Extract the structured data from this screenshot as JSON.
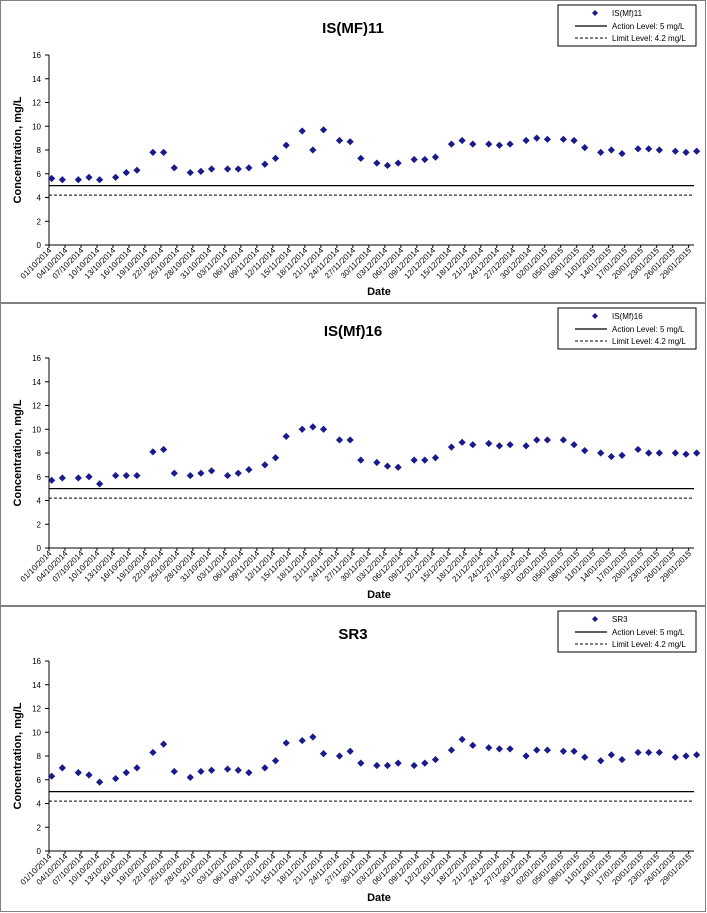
{
  "chart_data": [
    {
      "type": "scatter",
      "title": "IS(MF)11",
      "xlabel": "Date",
      "ylabel": "Concentration, mg/L",
      "ylim": [
        0,
        16
      ],
      "yticks": [
        "0",
        "2",
        "4",
        "6",
        "8",
        "10",
        "12",
        "14",
        "16"
      ],
      "xticks": [
        "01/10/2014",
        "04/10/2014",
        "07/10/2014",
        "10/10/2014",
        "13/10/2014",
        "16/10/2014",
        "19/10/2014",
        "22/10/2014",
        "25/10/2014",
        "28/10/2014",
        "31/10/2014",
        "03/11/2014",
        "06/11/2014",
        "09/11/2014",
        "12/11/2014",
        "15/11/2014",
        "18/11/2014",
        "21/11/2014",
        "24/11/2014",
        "27/11/2014",
        "30/11/2014",
        "03/12/2014",
        "06/12/2014",
        "09/12/2014",
        "12/12/2014",
        "15/12/2014",
        "18/12/2014",
        "21/12/2014",
        "24/12/2014",
        "27/12/2014",
        "30/12/2014",
        "02/01/2015",
        "05/01/2015",
        "08/01/2015",
        "11/01/2015",
        "14/01/2015",
        "17/01/2015",
        "20/01/2015",
        "23/01/2015",
        "26/01/2015",
        "29/01/2015"
      ],
      "legend": [
        "IS(Mf)11",
        "Action Level: 5 mg/L",
        "Limit Level: 4.2 mg/L"
      ],
      "action_level": 5,
      "limit_level": 4.2,
      "grid": false,
      "legend_position": "top-right",
      "series": [
        {
          "name": "IS(Mf)11",
          "x": [
            "01/10/2014",
            "03/10/2014",
            "06/10/2014",
            "08/10/2014",
            "10/10/2014",
            "13/10/2014",
            "15/10/2014",
            "17/10/2014",
            "20/10/2014",
            "22/10/2014",
            "24/10/2014",
            "27/10/2014",
            "29/10/2014",
            "31/10/2014",
            "03/11/2014",
            "05/11/2014",
            "07/11/2014",
            "10/11/2014",
            "12/11/2014",
            "14/11/2014",
            "17/11/2014",
            "19/11/2014",
            "21/11/2014",
            "24/11/2014",
            "26/11/2014",
            "28/11/2014",
            "01/12/2014",
            "03/12/2014",
            "05/12/2014",
            "08/12/2014",
            "10/12/2014",
            "12/12/2014",
            "15/12/2014",
            "17/12/2014",
            "19/12/2014",
            "22/12/2014",
            "24/12/2014",
            "26/12/2014",
            "29/12/2014",
            "31/12/2014",
            "02/01/2015",
            "05/01/2015",
            "07/01/2015",
            "09/01/2015",
            "12/01/2015",
            "14/01/2015",
            "16/01/2015",
            "19/01/2015",
            "21/01/2015",
            "23/01/2015",
            "26/01/2015",
            "28/01/2015",
            "30/01/2015"
          ],
          "values": [
            5.6,
            5.5,
            5.5,
            5.7,
            5.5,
            5.7,
            6.1,
            6.3,
            7.8,
            7.8,
            6.5,
            6.1,
            6.2,
            6.4,
            6.4,
            6.4,
            6.5,
            6.8,
            7.3,
            8.4,
            9.6,
            8.0,
            9.7,
            8.8,
            8.7,
            7.3,
            6.9,
            6.7,
            6.9,
            7.2,
            7.2,
            7.4,
            8.5,
            8.8,
            8.5,
            8.5,
            8.4,
            8.5,
            8.8,
            9.0,
            8.9,
            8.9,
            8.8,
            8.2,
            7.8,
            8.0,
            7.7,
            8.1,
            8.1,
            8.0,
            7.9,
            7.8,
            7.9
          ]
        }
      ]
    },
    {
      "type": "scatter",
      "title": "IS(Mf)16",
      "xlabel": "Date",
      "ylabel": "Concentration, mg/L",
      "ylim": [
        0,
        16
      ],
      "yticks": [
        "0",
        "2",
        "4",
        "6",
        "8",
        "10",
        "12",
        "14",
        "16"
      ],
      "xticks": [
        "01/10/2014",
        "04/10/2014",
        "07/10/2014",
        "10/10/2014",
        "13/10/2014",
        "16/10/2014",
        "19/10/2014",
        "22/10/2014",
        "25/10/2014",
        "28/10/2014",
        "31/10/2014",
        "03/11/2014",
        "06/11/2014",
        "09/11/2014",
        "12/11/2014",
        "15/11/2014",
        "18/11/2014",
        "21/11/2014",
        "24/11/2014",
        "27/11/2014",
        "30/11/2014",
        "03/12/2014",
        "06/12/2014",
        "09/12/2014",
        "12/12/2014",
        "15/12/2014",
        "18/12/2014",
        "21/12/2014",
        "24/12/2014",
        "27/12/2014",
        "30/12/2014",
        "02/01/2015",
        "05/01/2015",
        "08/01/2015",
        "11/01/2015",
        "14/01/2015",
        "17/01/2015",
        "20/01/2015",
        "23/01/2015",
        "26/01/2015",
        "29/01/2015"
      ],
      "legend": [
        "IS(Mf)16",
        "Action Level: 5 mg/L",
        "Limit Level: 4.2 mg/L"
      ],
      "action_level": 5,
      "limit_level": 4.2,
      "grid": false,
      "legend_position": "top-right",
      "series": [
        {
          "name": "IS(Mf)16",
          "x": [
            "01/10/2014",
            "03/10/2014",
            "06/10/2014",
            "08/10/2014",
            "10/10/2014",
            "13/10/2014",
            "15/10/2014",
            "17/10/2014",
            "20/10/2014",
            "22/10/2014",
            "24/10/2014",
            "27/10/2014",
            "29/10/2014",
            "31/10/2014",
            "03/11/2014",
            "05/11/2014",
            "07/11/2014",
            "10/11/2014",
            "12/11/2014",
            "14/11/2014",
            "17/11/2014",
            "19/11/2014",
            "21/11/2014",
            "24/11/2014",
            "26/11/2014",
            "28/11/2014",
            "01/12/2014",
            "03/12/2014",
            "05/12/2014",
            "08/12/2014",
            "10/12/2014",
            "12/12/2014",
            "15/12/2014",
            "17/12/2014",
            "19/12/2014",
            "22/12/2014",
            "24/12/2014",
            "26/12/2014",
            "29/12/2014",
            "31/12/2014",
            "02/01/2015",
            "05/01/2015",
            "07/01/2015",
            "09/01/2015",
            "12/01/2015",
            "14/01/2015",
            "16/01/2015",
            "19/01/2015",
            "21/01/2015",
            "23/01/2015",
            "26/01/2015",
            "28/01/2015",
            "30/01/2015"
          ],
          "values": [
            5.7,
            5.9,
            5.9,
            6.0,
            5.4,
            6.1,
            6.1,
            6.1,
            8.1,
            8.3,
            6.3,
            6.1,
            6.3,
            6.5,
            6.1,
            6.3,
            6.6,
            7.0,
            7.6,
            9.4,
            10.0,
            10.2,
            10.0,
            9.1,
            9.1,
            7.4,
            7.2,
            6.9,
            6.8,
            7.4,
            7.4,
            7.6,
            8.5,
            8.9,
            8.7,
            8.8,
            8.6,
            8.7,
            8.6,
            9.1,
            9.1,
            9.1,
            8.7,
            8.2,
            8.0,
            7.7,
            7.8,
            8.3,
            8.0,
            8.0,
            8.0,
            7.9,
            8.0
          ]
        }
      ]
    },
    {
      "type": "scatter",
      "title": "SR3",
      "xlabel": "Date",
      "ylabel": "Concentration, mg/L",
      "ylim": [
        0,
        16
      ],
      "yticks": [
        "0",
        "2",
        "4",
        "6",
        "8",
        "10",
        "12",
        "14",
        "16"
      ],
      "xticks": [
        "01/10/2014",
        "04/10/2014",
        "07/10/2014",
        "10/10/2014",
        "13/10/2014",
        "16/10/2014",
        "19/10/2014",
        "22/10/2014",
        "25/10/2014",
        "28/10/2014",
        "31/10/2014",
        "03/11/2014",
        "06/11/2014",
        "09/11/2014",
        "12/11/2014",
        "15/11/2014",
        "18/11/2014",
        "21/11/2014",
        "24/11/2014",
        "27/11/2014",
        "30/11/2014",
        "03/12/2014",
        "06/12/2014",
        "09/12/2014",
        "12/12/2014",
        "15/12/2014",
        "18/12/2014",
        "21/12/2014",
        "24/12/2014",
        "27/12/2014",
        "30/12/2014",
        "02/01/2015",
        "05/01/2015",
        "08/01/2015",
        "11/01/2015",
        "14/01/2015",
        "17/01/2015",
        "20/01/2015",
        "23/01/2015",
        "26/01/2015",
        "29/01/2015"
      ],
      "legend": [
        "SR3",
        "Action Level: 5 mg/L",
        "Limit Level: 4.2 mg/L"
      ],
      "action_level": 5,
      "limit_level": 4.2,
      "grid": false,
      "legend_position": "top-right",
      "series": [
        {
          "name": "SR3",
          "x": [
            "01/10/2014",
            "03/10/2014",
            "06/10/2014",
            "08/10/2014",
            "10/10/2014",
            "13/10/2014",
            "15/10/2014",
            "17/10/2014",
            "20/10/2014",
            "22/10/2014",
            "24/10/2014",
            "27/10/2014",
            "29/10/2014",
            "31/10/2014",
            "03/11/2014",
            "05/11/2014",
            "07/11/2014",
            "10/11/2014",
            "12/11/2014",
            "14/11/2014",
            "17/11/2014",
            "19/11/2014",
            "21/11/2014",
            "24/11/2014",
            "26/11/2014",
            "28/11/2014",
            "01/12/2014",
            "03/12/2014",
            "05/12/2014",
            "08/12/2014",
            "10/12/2014",
            "12/12/2014",
            "15/12/2014",
            "17/12/2014",
            "19/12/2014",
            "22/12/2014",
            "24/12/2014",
            "26/12/2014",
            "29/12/2014",
            "31/12/2014",
            "02/01/2015",
            "05/01/2015",
            "07/01/2015",
            "09/01/2015",
            "12/01/2015",
            "14/01/2015",
            "16/01/2015",
            "19/01/2015",
            "21/01/2015",
            "23/01/2015",
            "26/01/2015",
            "28/01/2015",
            "30/01/2015"
          ],
          "values": [
            6.3,
            7.0,
            6.6,
            6.4,
            5.8,
            6.1,
            6.6,
            7.0,
            8.3,
            9.0,
            6.7,
            6.2,
            6.7,
            6.8,
            6.9,
            6.8,
            6.6,
            7.0,
            7.6,
            9.1,
            9.3,
            9.6,
            8.2,
            8.0,
            8.4,
            7.4,
            7.2,
            7.2,
            7.4,
            7.2,
            7.4,
            7.7,
            8.5,
            9.4,
            8.9,
            8.7,
            8.6,
            8.6,
            8.0,
            8.5,
            8.5,
            8.4,
            8.4,
            7.9,
            7.6,
            8.1,
            7.7,
            8.3,
            8.3,
            8.3,
            7.9,
            8.0,
            8.1
          ]
        }
      ]
    }
  ]
}
